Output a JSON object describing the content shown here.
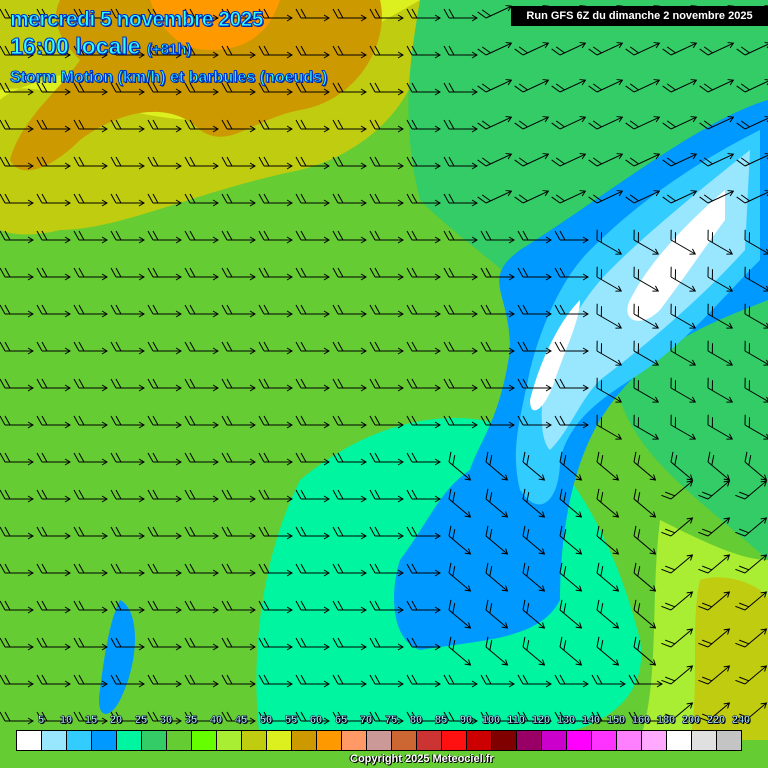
{
  "header": {
    "date": "mercredi 5 novembre 2025",
    "time": "16:00 locale",
    "lead": "(+81h)",
    "parameter": "Storm Motion (km/h) et barbules (noeuds)",
    "run": "Run GFS 6Z du dimanche 2 novembre 2025"
  },
  "legend": {
    "labels": [
      "5",
      "10",
      "15",
      "20",
      "25",
      "30",
      "35",
      "40",
      "45",
      "50",
      "55",
      "60",
      "65",
      "70",
      "75",
      "80",
      "85",
      "90",
      "100",
      "110",
      "120",
      "130",
      "140",
      "150",
      "160",
      "180",
      "200",
      "220",
      "240"
    ],
    "colors": [
      "#ffffff",
      "#99e6ff",
      "#33ccff",
      "#0099ff",
      "#00f5a0",
      "#33cc66",
      "#66cc33",
      "#66ff00",
      "#aaee33",
      "#c0cc10",
      "#dcf020",
      "#cc9900",
      "#ff9900",
      "#ff9966",
      "#cc9999",
      "#cc6633",
      "#cc3333",
      "#ff1111",
      "#cc0000",
      "#800000",
      "#990066",
      "#cc00cc",
      "#ff00ff",
      "#ff33ff",
      "#ff80ff",
      "#ffaaff",
      "#ffffff",
      "#e0e0e0",
      "#c4c4c4"
    ]
  },
  "map": {
    "icon": "wind-barb-arrow-icon",
    "colors": {
      "green": "#66cc33",
      "teal": "#33cc66",
      "aqua": "#00f5a0",
      "lime": "#66ff00",
      "yellow": "#dcf020",
      "olive": "#c0cc10",
      "orange": "#cc9900",
      "blue": "#0099ff",
      "lightblue": "#33ccff",
      "paleblue": "#99e6ff"
    }
  },
  "footer": {
    "copyright": "Copyright 2025 Meteociel.fr"
  }
}
